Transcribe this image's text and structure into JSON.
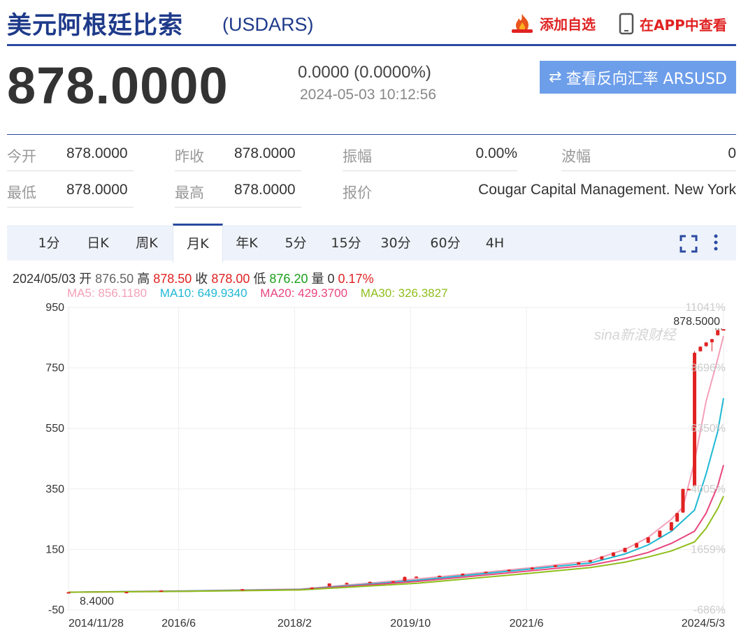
{
  "header": {
    "title": "美元阿根廷比索",
    "code": "(USDARS)",
    "add_favorite_label": "添加自选",
    "app_view_label": "在APP中查看"
  },
  "quote": {
    "price": "878.0000",
    "change": "0.0000 (0.0000%)",
    "datetime": "2024-05-03 10:12:56",
    "reverse_button_icon": "⇄",
    "reverse_button_label": "查看反向汇率 ARSUSD"
  },
  "stats": {
    "open_label": "今开",
    "open_value": "878.0000",
    "prev_close_label": "昨收",
    "prev_close_value": "878.0000",
    "amplitude_label": "振幅",
    "amplitude_value": "0.00%",
    "wave_label": "波幅",
    "wave_value": "0",
    "low_label": "最低",
    "low_value": "878.0000",
    "high_label": "最高",
    "high_value": "878.0000",
    "quoter_label": "报价",
    "quoter_value": "Cougar Capital Management. New York"
  },
  "tabs": [
    "1分",
    "日K",
    "周K",
    "月K",
    "年K",
    "5分",
    "15分",
    "30分",
    "60分",
    "4H"
  ],
  "active_tab": "月K",
  "ohlc": {
    "date": "2024/05/03",
    "open_label": "开",
    "open": "876.50",
    "high_label": "高",
    "high": "878.50",
    "close_label": "收",
    "close": "878.00",
    "low_label": "低",
    "low": "876.20",
    "volume_label": "量",
    "volume": "0",
    "pct": "0.17%"
  },
  "ma": {
    "ma5": "MA5: 856.1180",
    "ma10": "MA10: 649.9340",
    "ma20": "MA20: 429.3700",
    "ma30": "MA30: 326.3827"
  },
  "colors": {
    "brand_blue": "#1e3a8a",
    "red": "#e02222",
    "green": "#1aa01a",
    "ma5": "#f4a0b8",
    "ma10": "#1fb8d3",
    "ma20": "#e8457f",
    "ma30": "#8fbe1c"
  },
  "chart_data": {
    "type": "candlestick",
    "watermark": "sina新浪财经",
    "y_ticks": [
      "950",
      "750",
      "550",
      "350",
      "150",
      "-50"
    ],
    "y_tick_values": [
      950,
      750,
      550,
      350,
      150,
      -50
    ],
    "pct_ticks": [
      "11041%",
      "8696%",
      "6350%",
      "4005%",
      "1659%",
      "-686%"
    ],
    "pct_tick_values": [
      950,
      750,
      550,
      350,
      150,
      -50
    ],
    "x_ticks": [
      "2014/11/28",
      "2016/6",
      "2018/2",
      "2019/10",
      "2021/6",
      "2024/5/3"
    ],
    "x_tick_positions": [
      0,
      19,
      39,
      59,
      79,
      113
    ],
    "ylim": [
      -50,
      950
    ],
    "n_periods": 114,
    "max_label": "878.5000",
    "min_label": "8.4000",
    "candles": [
      {
        "i": 0,
        "o": 8.5,
        "c": 8.9,
        "h": 9.0,
        "l": 8.4
      },
      {
        "i": 10,
        "o": 9.1,
        "c": 9.6,
        "h": 9.8,
        "l": 9.0
      },
      {
        "i": 16,
        "o": 13.5,
        "c": 14.5,
        "h": 15.0,
        "l": 13.3
      },
      {
        "i": 30,
        "o": 17.5,
        "c": 18.8,
        "h": 19.2,
        "l": 17.4
      },
      {
        "i": 42,
        "o": 19.0,
        "c": 24.0,
        "h": 25.0,
        "l": 19.0
      },
      {
        "i": 45,
        "o": 28.0,
        "c": 37.5,
        "h": 38.0,
        "l": 27.5
      },
      {
        "i": 48,
        "o": 37.0,
        "c": 39.0,
        "h": 41.0,
        "l": 36.0
      },
      {
        "i": 52,
        "o": 41.0,
        "c": 43.0,
        "h": 44.0,
        "l": 40.0
      },
      {
        "i": 56,
        "o": 44.0,
        "c": 45.0,
        "h": 46.0,
        "l": 43.0
      },
      {
        "i": 58,
        "o": 46.0,
        "c": 59.0,
        "h": 61.0,
        "l": 45.0
      },
      {
        "i": 60,
        "o": 59.0,
        "c": 60.0,
        "h": 61.5,
        "l": 58.0
      },
      {
        "i": 64,
        "o": 61.0,
        "c": 63.0,
        "h": 64.0,
        "l": 60.0
      },
      {
        "i": 68,
        "o": 64.0,
        "c": 70.0,
        "h": 71.0,
        "l": 63.5
      },
      {
        "i": 72,
        "o": 72.0,
        "c": 76.0,
        "h": 77.0,
        "l": 71.0
      },
      {
        "i": 76,
        "o": 78.0,
        "c": 83.0,
        "h": 84.0,
        "l": 77.0
      },
      {
        "i": 80,
        "o": 84.0,
        "c": 90.0,
        "h": 91.0,
        "l": 83.0
      },
      {
        "i": 84,
        "o": 92.0,
        "c": 98.0,
        "h": 99.0,
        "l": 91.0
      },
      {
        "i": 88,
        "o": 100.0,
        "c": 107.0,
        "h": 108.0,
        "l": 99.0
      },
      {
        "i": 90,
        "o": 108.0,
        "c": 115.0,
        "h": 116.0,
        "l": 107.0
      },
      {
        "i": 92,
        "o": 117.0,
        "c": 127.0,
        "h": 128.0,
        "l": 116.0
      },
      {
        "i": 94,
        "o": 128.0,
        "c": 140.0,
        "h": 141.0,
        "l": 127.0
      },
      {
        "i": 96,
        "o": 141.0,
        "c": 155.0,
        "h": 156.0,
        "l": 140.0
      },
      {
        "i": 98,
        "o": 156.0,
        "c": 171.0,
        "h": 172.0,
        "l": 155.0
      },
      {
        "i": 100,
        "o": 172.0,
        "c": 190.0,
        "h": 191.0,
        "l": 171.0
      },
      {
        "i": 102,
        "o": 191.0,
        "c": 212.0,
        "h": 213.0,
        "l": 190.0
      },
      {
        "i": 104,
        "o": 213.0,
        "c": 240.0,
        "h": 241.0,
        "l": 212.0
      },
      {
        "i": 105,
        "o": 242.0,
        "c": 270.0,
        "h": 271.0,
        "l": 241.0
      },
      {
        "i": 106,
        "o": 272.0,
        "c": 350.0,
        "h": 351.0,
        "l": 271.0
      },
      {
        "i": 107,
        "o": 350.0,
        "c": 350.0,
        "h": 351.0,
        "l": 349.0
      },
      {
        "i": 108,
        "o": 360.0,
        "c": 800.0,
        "h": 805.0,
        "l": 358.0
      },
      {
        "i": 109,
        "o": 805.0,
        "c": 820.0,
        "h": 822.0,
        "l": 804.0
      },
      {
        "i": 110,
        "o": 822.0,
        "c": 834.0,
        "h": 836.0,
        "l": 820.0
      },
      {
        "i": 111,
        "o": 835.0,
        "c": 845.0,
        "h": 846.0,
        "l": 805.0
      },
      {
        "i": 112,
        "o": 858.0,
        "c": 875.0,
        "h": 876.0,
        "l": 857.0
      },
      {
        "i": 113,
        "o": 876.5,
        "c": 878.0,
        "h": 878.5,
        "l": 876.2
      }
    ],
    "ma_series": [
      {
        "name": "MA5",
        "color": "#f4a0b8",
        "points": [
          [
            0,
            8.6
          ],
          [
            20,
            13
          ],
          [
            40,
            19
          ],
          [
            60,
            52
          ],
          [
            80,
            90
          ],
          [
            90,
            112
          ],
          [
            96,
            150
          ],
          [
            100,
            190
          ],
          [
            104,
            250
          ],
          [
            106,
            290
          ],
          [
            108,
            440
          ],
          [
            110,
            640
          ],
          [
            112,
            780
          ],
          [
            113,
            856
          ]
        ]
      },
      {
        "name": "MA10",
        "color": "#1fb8d3",
        "points": [
          [
            0,
            8.6
          ],
          [
            20,
            12.5
          ],
          [
            40,
            18
          ],
          [
            60,
            48
          ],
          [
            80,
            86
          ],
          [
            90,
            105
          ],
          [
            96,
            135
          ],
          [
            100,
            165
          ],
          [
            104,
            210
          ],
          [
            108,
            280
          ],
          [
            110,
            400
          ],
          [
            112,
            540
          ],
          [
            113,
            650
          ]
        ]
      },
      {
        "name": "MA20",
        "color": "#e8457f",
        "points": [
          [
            0,
            8.6
          ],
          [
            20,
            12
          ],
          [
            40,
            17
          ],
          [
            60,
            44
          ],
          [
            80,
            80
          ],
          [
            90,
            98
          ],
          [
            96,
            120
          ],
          [
            100,
            140
          ],
          [
            104,
            170
          ],
          [
            108,
            210
          ],
          [
            110,
            270
          ],
          [
            112,
            360
          ],
          [
            113,
            429
          ]
        ]
      },
      {
        "name": "MA30",
        "color": "#8fbe1c",
        "points": [
          [
            0,
            8.6
          ],
          [
            20,
            11.5
          ],
          [
            40,
            16
          ],
          [
            60,
            38
          ],
          [
            80,
            72
          ],
          [
            90,
            90
          ],
          [
            96,
            108
          ],
          [
            100,
            125
          ],
          [
            104,
            145
          ],
          [
            108,
            175
          ],
          [
            110,
            220
          ],
          [
            112,
            285
          ],
          [
            113,
            326
          ]
        ]
      }
    ]
  }
}
